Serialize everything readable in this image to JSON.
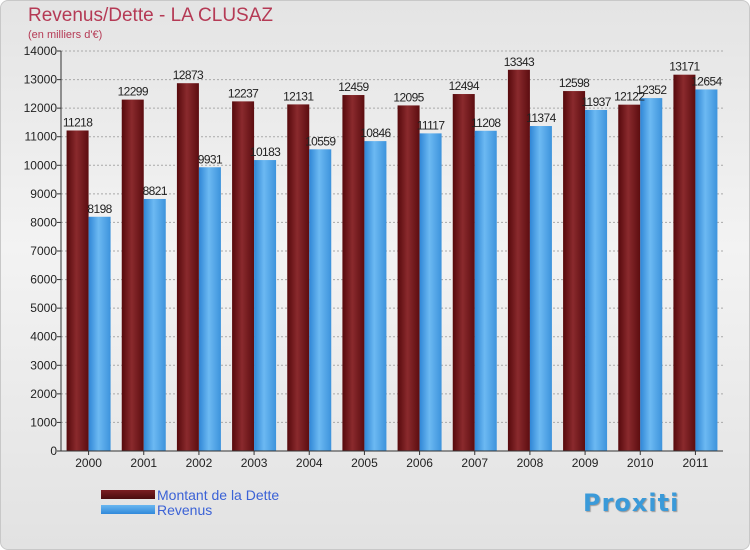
{
  "title": "Revenus/Dette - LA CLUSAZ",
  "subtitle": "(en milliers d'€)",
  "logo_text": "Proxiti",
  "colors": {
    "title": "#b53a55",
    "debt": "#6b161a",
    "revenue": "#4da3e8",
    "legend_text": "#3b62d6"
  },
  "chart_data": {
    "type": "bar",
    "categories": [
      "2000",
      "2001",
      "2002",
      "2003",
      "2004",
      "2005",
      "2006",
      "2007",
      "2008",
      "2009",
      "2010",
      "2011"
    ],
    "series": [
      {
        "name": "Montant de la Dette",
        "values": [
          11218,
          12299,
          12873,
          12237,
          12131,
          12459,
          12095,
          12494,
          13343,
          12598,
          12122,
          13171
        ]
      },
      {
        "name": "Revenus",
        "values": [
          8198,
          8821,
          9931,
          10183,
          10559,
          10846,
          11117,
          11208,
          11374,
          11937,
          12352,
          12654
        ]
      }
    ],
    "ylim": [
      0,
      14000
    ],
    "yticks": [
      0,
      1000,
      2000,
      3000,
      4000,
      5000,
      6000,
      7000,
      8000,
      9000,
      10000,
      11000,
      12000,
      13000,
      14000
    ],
    "grid": true,
    "data_labels": {
      "debt": [
        "11218",
        "12299",
        "12873",
        "12237",
        "12131",
        "12459",
        "12095",
        "12494",
        "13343",
        "12598",
        "12122",
        "13171"
      ],
      "revenue": [
        "8198",
        "8821",
        "9931",
        "10183",
        "10559",
        "10846",
        "11117",
        "11208",
        "11374",
        "11937",
        "12352",
        "12654"
      ]
    }
  }
}
